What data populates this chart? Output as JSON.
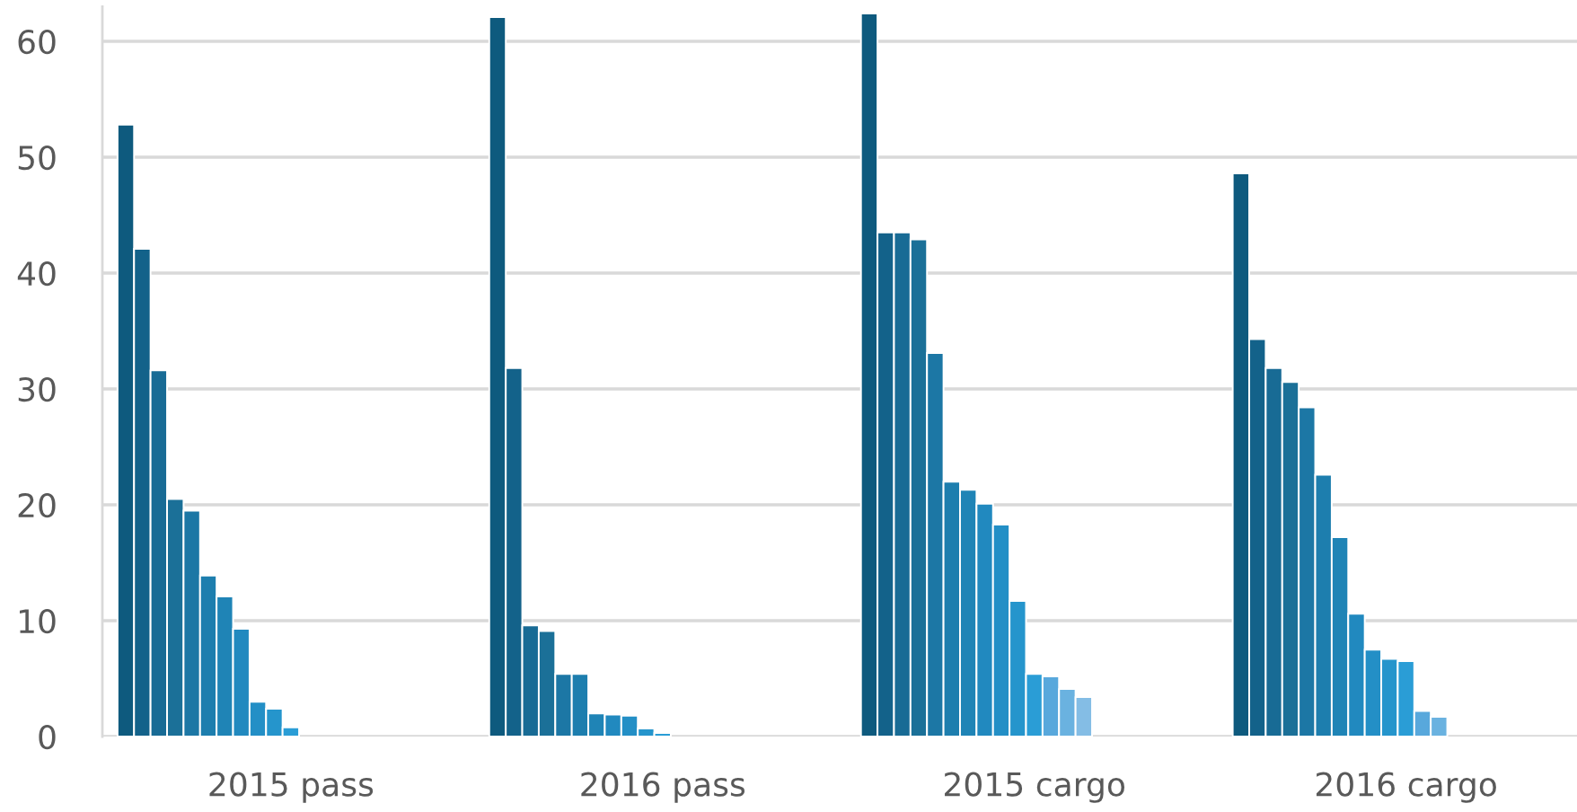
{
  "chart_data": {
    "type": "bar",
    "categories": [
      "2015 pass",
      "2016 pass",
      "2015 cargo",
      "2016 cargo"
    ],
    "series": [
      {
        "color": "#0e5a7e",
        "values": [
          52.8,
          62.1,
          62.4,
          48.6
        ]
      },
      {
        "color": "#13628a",
        "values": [
          42.1,
          31.8,
          43.5,
          34.3
        ]
      },
      {
        "color": "#186b95",
        "values": [
          31.6,
          9.6,
          43.5,
          31.8
        ]
      },
      {
        "color": "#1b7098",
        "values": [
          20.5,
          9.1,
          42.9,
          30.6
        ]
      },
      {
        "color": "#1c77a5",
        "values": [
          19.5,
          5.4,
          33.1,
          28.4
        ]
      },
      {
        "color": "#1d7eae",
        "values": [
          13.9,
          5.4,
          22.0,
          22.6
        ]
      },
      {
        "color": "#1f84b6",
        "values": [
          12.1,
          2.0,
          21.3,
          17.2
        ]
      },
      {
        "color": "#2189bf",
        "values": [
          9.3,
          1.9,
          20.1,
          10.6
        ]
      },
      {
        "color": "#238fc6",
        "values": [
          3.0,
          1.8,
          18.3,
          7.5
        ]
      },
      {
        "color": "#2595cc",
        "values": [
          2.4,
          0.7,
          11.7,
          6.7
        ]
      },
      {
        "color": "#2a9dd6",
        "values": [
          0.8,
          0.3,
          5.4,
          6.5
        ]
      },
      {
        "color": "#58a8dc",
        "values": [
          null,
          null,
          5.2,
          2.2
        ]
      },
      {
        "color": "#6ab2e0",
        "values": [
          null,
          null,
          4.1,
          1.7
        ]
      },
      {
        "color": "#84bde5",
        "values": [
          null,
          null,
          3.4,
          null
        ]
      }
    ],
    "ylim": [
      0,
      63
    ],
    "yticks": [
      0,
      10,
      20,
      30,
      40,
      50,
      60
    ],
    "grid": "y",
    "legend": false
  }
}
